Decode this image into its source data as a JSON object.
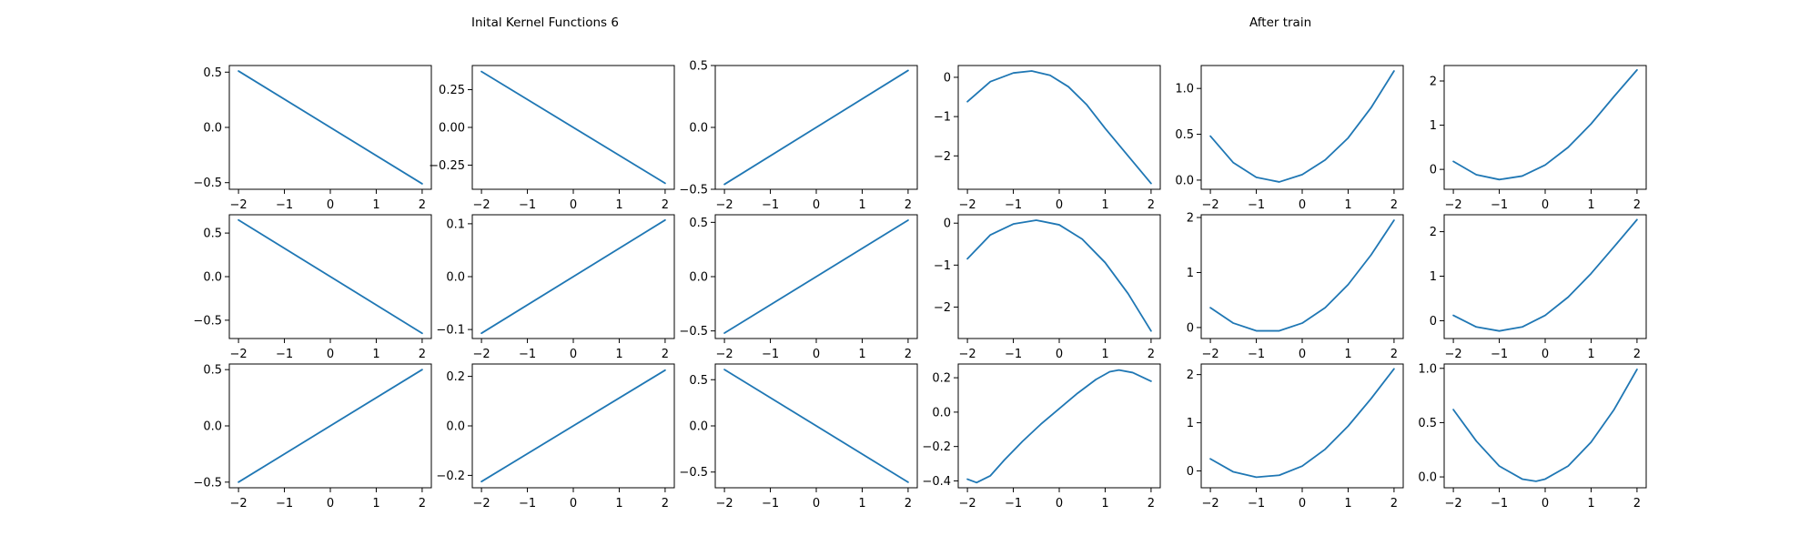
{
  "titles": {
    "left": "Inital Kernel Functions 6",
    "right": "After train"
  },
  "colors": {
    "line": "#1f77b4"
  },
  "chart_data": [
    {
      "type": "line",
      "row": 0,
      "col": 0,
      "xlim": [
        -2.2,
        2.2
      ],
      "ylim": [
        -0.56,
        0.56
      ],
      "xticks": [
        -2,
        -1,
        0,
        1,
        2
      ],
      "yticks": [
        -0.5,
        0.0,
        0.5
      ],
      "x": [
        -2,
        2
      ],
      "y": [
        0.51,
        -0.51
      ]
    },
    {
      "type": "line",
      "row": 0,
      "col": 1,
      "xlim": [
        -2.2,
        2.2
      ],
      "ylim": [
        -0.41,
        0.41
      ],
      "xticks": [
        -2,
        -1,
        0,
        1,
        2
      ],
      "yticks": [
        -0.25,
        0.0,
        0.25
      ],
      "x": [
        -2,
        2
      ],
      "y": [
        0.37,
        -0.37
      ]
    },
    {
      "type": "line",
      "row": 0,
      "col": 2,
      "xlim": [
        -2.2,
        2.2
      ],
      "ylim": [
        -0.5,
        0.5
      ],
      "xticks": [
        -2,
        -1,
        0,
        1,
        2
      ],
      "yticks": [
        -0.5,
        0.0,
        0.5
      ],
      "x": [
        -2,
        2
      ],
      "y": [
        -0.46,
        0.46
      ]
    },
    {
      "type": "line",
      "row": 0,
      "col": 3,
      "xlim": [
        -2.2,
        2.2
      ],
      "ylim": [
        -2.85,
        0.3
      ],
      "xticks": [
        -2,
        -1,
        0,
        1,
        2
      ],
      "yticks": [
        -2,
        -1,
        0
      ],
      "x": [
        -2,
        -1.5,
        -1,
        -0.6,
        -0.2,
        0.2,
        0.6,
        1,
        1.5,
        2
      ],
      "y": [
        -0.62,
        -0.11,
        0.11,
        0.16,
        0.05,
        -0.24,
        -0.7,
        -1.3,
        -2.0,
        -2.7
      ]
    },
    {
      "type": "line",
      "row": 0,
      "col": 4,
      "xlim": [
        -2.2,
        2.2
      ],
      "ylim": [
        -0.1,
        1.25
      ],
      "xticks": [
        -2,
        -1,
        0,
        1,
        2
      ],
      "yticks": [
        0.0,
        0.5,
        1.0
      ],
      "x": [
        -2,
        -1.5,
        -1,
        -0.5,
        0,
        0.5,
        1,
        1.5,
        2
      ],
      "y": [
        0.48,
        0.19,
        0.03,
        -0.02,
        0.06,
        0.22,
        0.46,
        0.79,
        1.19
      ]
    },
    {
      "type": "line",
      "row": 0,
      "col": 5,
      "xlim": [
        -2.2,
        2.2
      ],
      "ylim": [
        -0.45,
        2.35
      ],
      "xticks": [
        -2,
        -1,
        0,
        1,
        2
      ],
      "yticks": [
        0,
        1,
        2
      ],
      "x": [
        -2,
        -1.5,
        -1,
        -0.5,
        0,
        0.5,
        1,
        1.5,
        2
      ],
      "y": [
        0.18,
        -0.12,
        -0.23,
        -0.15,
        0.1,
        0.5,
        1.03,
        1.65,
        2.25
      ]
    },
    {
      "type": "line",
      "row": 1,
      "col": 0,
      "xlim": [
        -2.2,
        2.2
      ],
      "ylim": [
        -0.71,
        0.71
      ],
      "xticks": [
        -2,
        -1,
        0,
        1,
        2
      ],
      "yticks": [
        -0.5,
        0.0,
        0.5
      ],
      "x": [
        -2,
        2
      ],
      "y": [
        0.65,
        -0.65
      ]
    },
    {
      "type": "line",
      "row": 1,
      "col": 1,
      "xlim": [
        -2.2,
        2.2
      ],
      "ylim": [
        -0.117,
        0.117
      ],
      "xticks": [
        -2,
        -1,
        0,
        1,
        2
      ],
      "yticks": [
        -0.1,
        0.0,
        0.1
      ],
      "x": [
        -2,
        2
      ],
      "y": [
        -0.107,
        0.107
      ]
    },
    {
      "type": "line",
      "row": 1,
      "col": 2,
      "xlim": [
        -2.2,
        2.2
      ],
      "ylim": [
        -0.57,
        0.57
      ],
      "xticks": [
        -2,
        -1,
        0,
        1,
        2
      ],
      "yticks": [
        -0.5,
        0.0,
        0.5
      ],
      "x": [
        -2,
        2
      ],
      "y": [
        -0.52,
        0.52
      ]
    },
    {
      "type": "line",
      "row": 1,
      "col": 3,
      "xlim": [
        -2.2,
        2.2
      ],
      "ylim": [
        -2.75,
        0.2
      ],
      "xticks": [
        -2,
        -1,
        0,
        1,
        2
      ],
      "yticks": [
        -2,
        -1,
        0
      ],
      "x": [
        -2,
        -1.5,
        -1,
        -0.5,
        0,
        0.5,
        1,
        1.5,
        2
      ],
      "y": [
        -0.85,
        -0.28,
        -0.02,
        0.07,
        -0.04,
        -0.38,
        -0.94,
        -1.68,
        -2.57
      ]
    },
    {
      "type": "line",
      "row": 1,
      "col": 4,
      "xlim": [
        -2.2,
        2.2
      ],
      "ylim": [
        -0.2,
        2.05
      ],
      "xticks": [
        -2,
        -1,
        0,
        1,
        2
      ],
      "yticks": [
        0,
        1,
        2
      ],
      "x": [
        -2,
        -1.5,
        -1,
        -0.5,
        0,
        0.5,
        1,
        1.5,
        2
      ],
      "y": [
        0.36,
        0.08,
        -0.06,
        -0.06,
        0.08,
        0.36,
        0.78,
        1.32,
        1.95
      ]
    },
    {
      "type": "line",
      "row": 1,
      "col": 5,
      "xlim": [
        -2.2,
        2.2
      ],
      "ylim": [
        -0.4,
        2.38
      ],
      "xticks": [
        -2,
        -1,
        0,
        1,
        2
      ],
      "yticks": [
        0,
        1,
        2
      ],
      "x": [
        -2,
        -1.5,
        -1,
        -0.5,
        0,
        0.5,
        1,
        1.5,
        2
      ],
      "y": [
        0.12,
        -0.14,
        -0.23,
        -0.14,
        0.12,
        0.53,
        1.06,
        1.66,
        2.27
      ]
    },
    {
      "type": "line",
      "row": 2,
      "col": 0,
      "xlim": [
        -2.2,
        2.2
      ],
      "ylim": [
        -0.55,
        0.55
      ],
      "xticks": [
        -2,
        -1,
        0,
        1,
        2
      ],
      "yticks": [
        -0.5,
        0.0,
        0.5
      ],
      "x": [
        -2,
        2
      ],
      "y": [
        -0.5,
        0.5
      ]
    },
    {
      "type": "line",
      "row": 2,
      "col": 1,
      "xlim": [
        -2.2,
        2.2
      ],
      "ylim": [
        -0.25,
        0.25
      ],
      "xticks": [
        -2,
        -1,
        0,
        1,
        2
      ],
      "yticks": [
        -0.2,
        0.0,
        0.2
      ],
      "x": [
        -2,
        2
      ],
      "y": [
        -0.225,
        0.225
      ]
    },
    {
      "type": "line",
      "row": 2,
      "col": 2,
      "xlim": [
        -2.2,
        2.2
      ],
      "ylim": [
        -0.67,
        0.67
      ],
      "xticks": [
        -2,
        -1,
        0,
        1,
        2
      ],
      "yticks": [
        -0.5,
        0.0,
        0.5
      ],
      "x": [
        -2,
        2
      ],
      "y": [
        0.61,
        -0.61
      ]
    },
    {
      "type": "line",
      "row": 2,
      "col": 3,
      "xlim": [
        -2.2,
        2.2
      ],
      "ylim": [
        -0.44,
        0.28
      ],
      "xticks": [
        -2,
        -1,
        0,
        1,
        2
      ],
      "yticks": [
        -0.4,
        -0.2,
        0.0,
        0.2
      ],
      "x": [
        -2,
        -1.8,
        -1.5,
        -1.2,
        -0.8,
        -0.4,
        0,
        0.4,
        0.8,
        1.1,
        1.3,
        1.6,
        2
      ],
      "y": [
        -0.39,
        -0.41,
        -0.37,
        -0.28,
        -0.17,
        -0.07,
        0.02,
        0.11,
        0.19,
        0.235,
        0.245,
        0.23,
        0.18
      ]
    },
    {
      "type": "line",
      "row": 2,
      "col": 4,
      "xlim": [
        -2.2,
        2.2
      ],
      "ylim": [
        -0.35,
        2.22
      ],
      "xticks": [
        -2,
        -1,
        0,
        1,
        2
      ],
      "yticks": [
        0,
        1,
        2
      ],
      "x": [
        -2,
        -1.5,
        -1,
        -0.5,
        0,
        0.5,
        1,
        1.5,
        2
      ],
      "y": [
        0.25,
        -0.02,
        -0.13,
        -0.09,
        0.1,
        0.45,
        0.93,
        1.5,
        2.12
      ]
    },
    {
      "type": "line",
      "row": 2,
      "col": 5,
      "xlim": [
        -2.2,
        2.2
      ],
      "ylim": [
        -0.1,
        1.04
      ],
      "xticks": [
        -2,
        -1,
        0,
        1,
        2
      ],
      "yticks": [
        0.0,
        0.5,
        1.0
      ],
      "x": [
        -2,
        -1.5,
        -1,
        -0.5,
        -0.2,
        0,
        0.5,
        1,
        1.5,
        2
      ],
      "y": [
        0.62,
        0.33,
        0.1,
        -0.02,
        -0.04,
        -0.02,
        0.1,
        0.32,
        0.62,
        0.99
      ]
    }
  ]
}
